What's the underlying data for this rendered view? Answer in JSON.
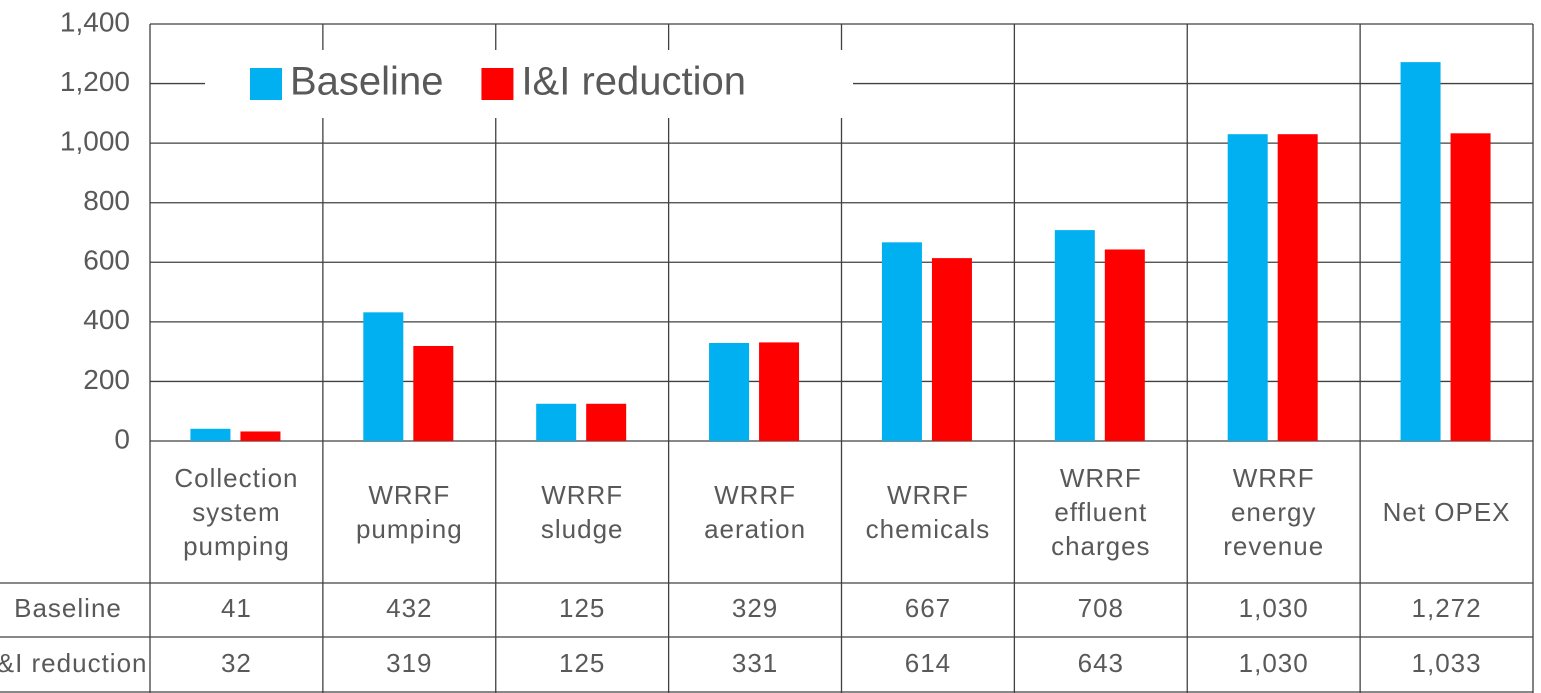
{
  "chart_data": {
    "type": "bar",
    "categories": [
      "Collection system pumping",
      "WRRF pumping",
      "WRRF sludge",
      "WRRF aeration",
      "WRRF chemicals",
      "WRRF effluent charges",
      "WRRF energy revenue",
      "Net OPEX"
    ],
    "series": [
      {
        "name": "Baseline",
        "color": "#00b0f0",
        "values": [
          41,
          432,
          125,
          329,
          667,
          708,
          1030,
          1272
        ],
        "value_labels": [
          "41",
          "432",
          "125",
          "329",
          "667",
          "708",
          "1,030",
          "1,272"
        ]
      },
      {
        "name": "I&I reduction",
        "color": "#ff0000",
        "values": [
          32,
          319,
          125,
          331,
          614,
          643,
          1030,
          1033
        ],
        "value_labels": [
          "32",
          "319",
          "125",
          "331",
          "614",
          "643",
          "1,030",
          "1,033"
        ]
      }
    ],
    "ylim": [
      0,
      1400
    ],
    "yticks": [
      0,
      200,
      400,
      600,
      800,
      {
        "value": 1000,
        "label": "1,000"
      },
      {
        "value": 1200,
        "label": "1,200"
      },
      {
        "value": 1400,
        "label": "1,400"
      }
    ],
    "grid": true
  }
}
